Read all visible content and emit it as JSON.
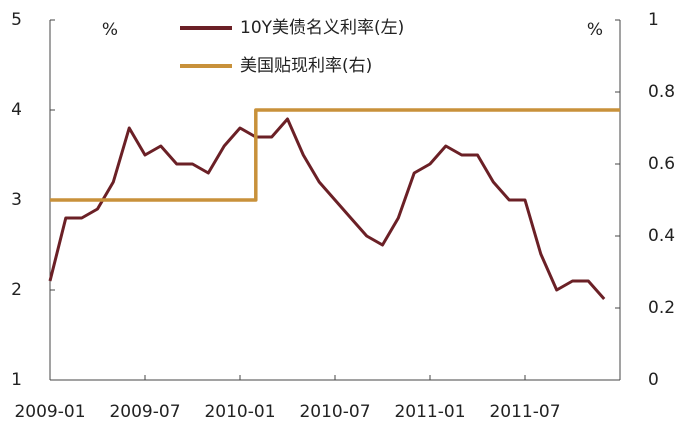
{
  "chart_data": {
    "type": "line",
    "y_unit": "%",
    "y2_unit": "%",
    "xlim": [
      "2009-01",
      "2012-01"
    ],
    "xticks": [
      "2009-01",
      "2009-07",
      "2010-01",
      "2010-07",
      "2011-01",
      "2011-07"
    ],
    "ylim": [
      1,
      5
    ],
    "yticks": [
      1,
      2,
      3,
      4,
      5
    ],
    "y2lim": [
      0,
      1
    ],
    "y2ticks": [
      0,
      0.2,
      0.4,
      0.6,
      0.8,
      1
    ],
    "legend": "top",
    "series": [
      {
        "name": "10Y美债名义利率(左)",
        "color": "#6b2026",
        "x": [
          "2009-01",
          "2009-02",
          "2009-03",
          "2009-04",
          "2009-05",
          "2009-06",
          "2009-07",
          "2009-08",
          "2009-09",
          "2009-10",
          "2009-11",
          "2009-12",
          "2010-01",
          "2010-02",
          "2010-03",
          "2010-04",
          "2010-05",
          "2010-06",
          "2010-07",
          "2010-08",
          "2010-09",
          "2010-10",
          "2010-11",
          "2010-12",
          "2011-01",
          "2011-02",
          "2011-03",
          "2011-04",
          "2011-05",
          "2011-06",
          "2011-07",
          "2011-08",
          "2011-09",
          "2011-10",
          "2011-11",
          "2011-12"
        ],
        "values": [
          2.1,
          2.8,
          2.8,
          2.9,
          3.2,
          3.8,
          3.5,
          3.6,
          3.4,
          3.4,
          3.3,
          3.6,
          3.8,
          3.7,
          3.7,
          3.9,
          3.5,
          3.2,
          3.0,
          2.8,
          2.6,
          2.5,
          2.8,
          3.3,
          3.4,
          3.6,
          3.5,
          3.5,
          3.2,
          3.0,
          3.0,
          2.4,
          2.0,
          2.1,
          2.1,
          1.9
        ]
      },
      {
        "name": "美国贴现利率(右)",
        "color": "#c8913a",
        "axis": "y2",
        "x": [
          "2009-01",
          "2010-02",
          "2010-02",
          "2012-01"
        ],
        "values": [
          0.5,
          0.5,
          0.75,
          0.75
        ]
      }
    ]
  }
}
